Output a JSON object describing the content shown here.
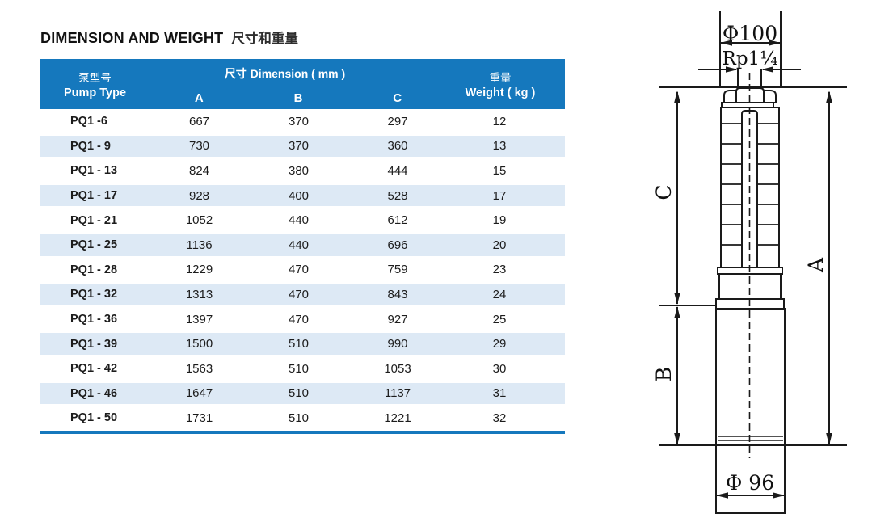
{
  "page": {
    "title_en": "DIMENSION AND WEIGHT",
    "title_zh": "尺寸和重量"
  },
  "table": {
    "header": {
      "pump_type_zh": "泵型号",
      "pump_type_en": "Pump Type",
      "dimension_group": "尺寸 Dimension ( mm )",
      "col_a": "A",
      "col_b": "B",
      "col_c": "C",
      "weight_zh": "重量",
      "weight_en": "Weight ( kg )"
    },
    "rows": [
      {
        "type": "PQ1 -6",
        "a": "667",
        "b": "370",
        "c": "297",
        "w": "12"
      },
      {
        "type": "PQ1 - 9",
        "a": "730",
        "b": "370",
        "c": "360",
        "w": "13"
      },
      {
        "type": "PQ1 - 13",
        "a": "824",
        "b": "380",
        "c": "444",
        "w": "15"
      },
      {
        "type": "PQ1 - 17",
        "a": "928",
        "b": "400",
        "c": "528",
        "w": "17"
      },
      {
        "type": "PQ1 - 21",
        "a": "1052",
        "b": "440",
        "c": "612",
        "w": "19"
      },
      {
        "type": "PQ1 - 25",
        "a": "1136",
        "b": "440",
        "c": "696",
        "w": "20"
      },
      {
        "type": "PQ1 - 28",
        "a": "1229",
        "b": "470",
        "c": "759",
        "w": "23"
      },
      {
        "type": "PQ1 - 32",
        "a": "1313",
        "b": "470",
        "c": "843",
        "w": "24"
      },
      {
        "type": "PQ1 - 36",
        "a": "1397",
        "b": "470",
        "c": "927",
        "w": "25"
      },
      {
        "type": "PQ1 - 39",
        "a": "1500",
        "b": "510",
        "c": "990",
        "w": "29"
      },
      {
        "type": "PQ1 - 42",
        "a": "1563",
        "b": "510",
        "c": "1053",
        "w": "30"
      },
      {
        "type": "PQ1 - 46",
        "a": "1647",
        "b": "510",
        "c": "1137",
        "w": "31"
      },
      {
        "type": "PQ1 - 50",
        "a": "1731",
        "b": "510",
        "c": "1221",
        "w": "32"
      }
    ]
  },
  "diagram": {
    "labels": {
      "top_diameter": "Φ100",
      "thread": "Rp1¼",
      "dim_c": "C",
      "dim_b": "B",
      "dim_a": "A",
      "bottom_diameter": "Φ 96"
    }
  },
  "colors": {
    "header_blue": "#1578bd",
    "row_alt": "#dde9f5",
    "line_black": "#1a1a1a"
  }
}
